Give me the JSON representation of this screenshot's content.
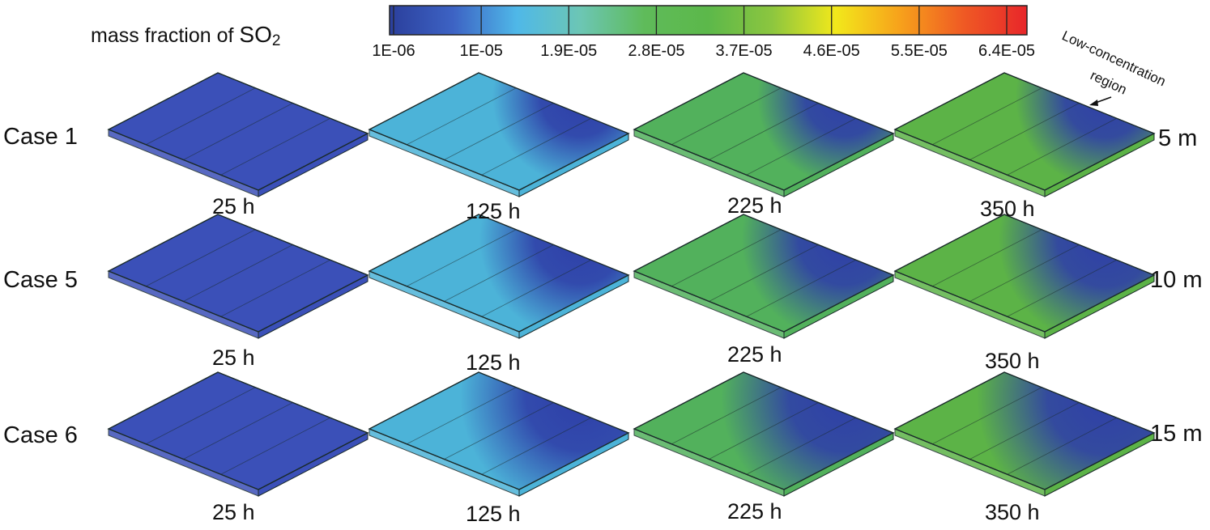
{
  "legend": {
    "title_text": "mass fraction of ",
    "title_formula": "SO",
    "title_subscript": "2",
    "tick_labels": [
      "1E-06",
      "1E-05",
      "1.9E-05",
      "2.8E-05",
      "3.7E-05",
      "4.6E-05",
      "5.5E-05",
      "6.4E-05"
    ],
    "colormap": [
      "#2b3f9c",
      "#3d63c4",
      "#4fb8e8",
      "#6cc6b4",
      "#5fbb5a",
      "#5cb84a",
      "#8cc63f",
      "#f2e81b",
      "#f7a21b",
      "#ef5a24",
      "#e8262a"
    ]
  },
  "annotation": {
    "line1": "Low-concentration",
    "line2": "region"
  },
  "rows": [
    {
      "case_label": "Case 1",
      "depth_label": "5 m"
    },
    {
      "case_label": "Case 5",
      "depth_label": "10 m"
    },
    {
      "case_label": "Case 6",
      "depth_label": "15 m"
    }
  ],
  "time_labels": [
    "25 h",
    "125 h",
    "225 h",
    "350 h"
  ],
  "panels": [
    [
      {
        "base": "#3b50b8",
        "low": 0.0
      },
      {
        "base": "#4cb3d8",
        "low": 0.3
      },
      {
        "base": "#52b15c",
        "low": 0.3
      },
      {
        "base": "#5cb347",
        "low": 0.32
      }
    ],
    [
      {
        "base": "#3b50b8",
        "low": 0.0
      },
      {
        "base": "#4cb3d8",
        "low": 0.4
      },
      {
        "base": "#52b15c",
        "low": 0.42
      },
      {
        "base": "#5cb347",
        "low": 0.45
      }
    ],
    [
      {
        "base": "#3b50b8",
        "low": 0.0
      },
      {
        "base": "#4cb3d8",
        "low": 0.55
      },
      {
        "base": "#52b15c",
        "low": 0.58
      },
      {
        "base": "#5cb347",
        "low": 0.62
      }
    ]
  ],
  "colors": {
    "low_concentration": "#2f3fa8",
    "edge_line": "#1a2a2a"
  }
}
